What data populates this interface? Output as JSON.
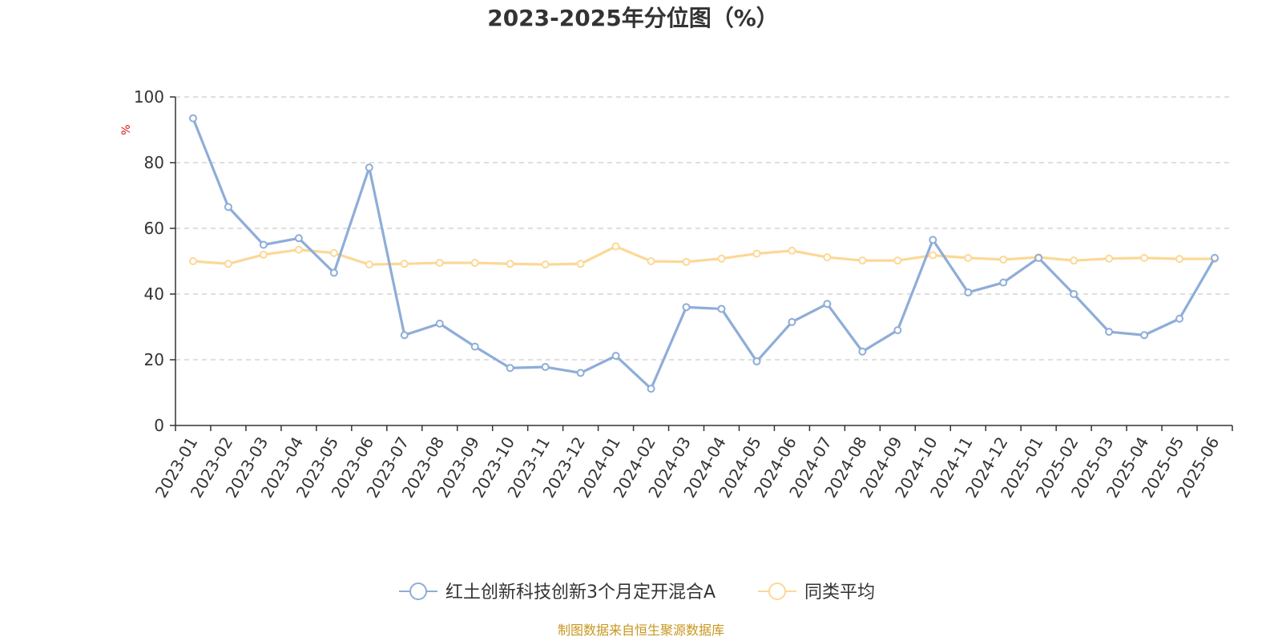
{
  "chart_data": {
    "type": "line",
    "title": "2023-2025年分位图（%）",
    "ylabel": "%",
    "ylim": [
      0,
      100
    ],
    "yticks": [
      0,
      20,
      40,
      60,
      80,
      100
    ],
    "grid": "y-dashed",
    "legend_position": "bottom",
    "categories": [
      "2023-01",
      "2023-02",
      "2023-03",
      "2023-04",
      "2023-05",
      "2023-06",
      "2023-07",
      "2023-08",
      "2023-09",
      "2023-10",
      "2023-11",
      "2023-12",
      "2024-01",
      "2024-02",
      "2024-03",
      "2024-04",
      "2024-05",
      "2024-06",
      "2024-07",
      "2024-08",
      "2024-09",
      "2024-10",
      "2024-11",
      "2024-12",
      "2025-01",
      "2025-02",
      "2025-03",
      "2025-04",
      "2025-05",
      "2025-06"
    ],
    "series": [
      {
        "name": "红土创新科技创新3个月定开混合A",
        "color": "#8eadd8",
        "values": [
          93.5,
          66.5,
          55.0,
          57.0,
          46.5,
          78.5,
          27.5,
          31.0,
          24.0,
          17.5,
          17.8,
          16.0,
          21.2,
          11.2,
          36.0,
          35.5,
          19.5,
          31.5,
          37.0,
          22.5,
          29.0,
          56.5,
          40.5,
          43.5,
          51.0,
          40.0,
          28.5,
          27.5,
          32.5,
          51.0
        ]
      },
      {
        "name": "同类平均",
        "color": "#fcd896",
        "values": [
          50.0,
          49.2,
          52.0,
          53.5,
          52.5,
          49.0,
          49.2,
          49.5,
          49.5,
          49.2,
          49.0,
          49.2,
          54.5,
          50.0,
          49.8,
          50.8,
          52.3,
          53.2,
          51.2,
          50.2,
          50.2,
          51.8,
          51.0,
          50.5,
          51.2,
          50.2,
          50.8,
          51.0,
          50.7,
          50.7
        ]
      }
    ],
    "source": "制图数据来自恒生聚源数据库"
  }
}
